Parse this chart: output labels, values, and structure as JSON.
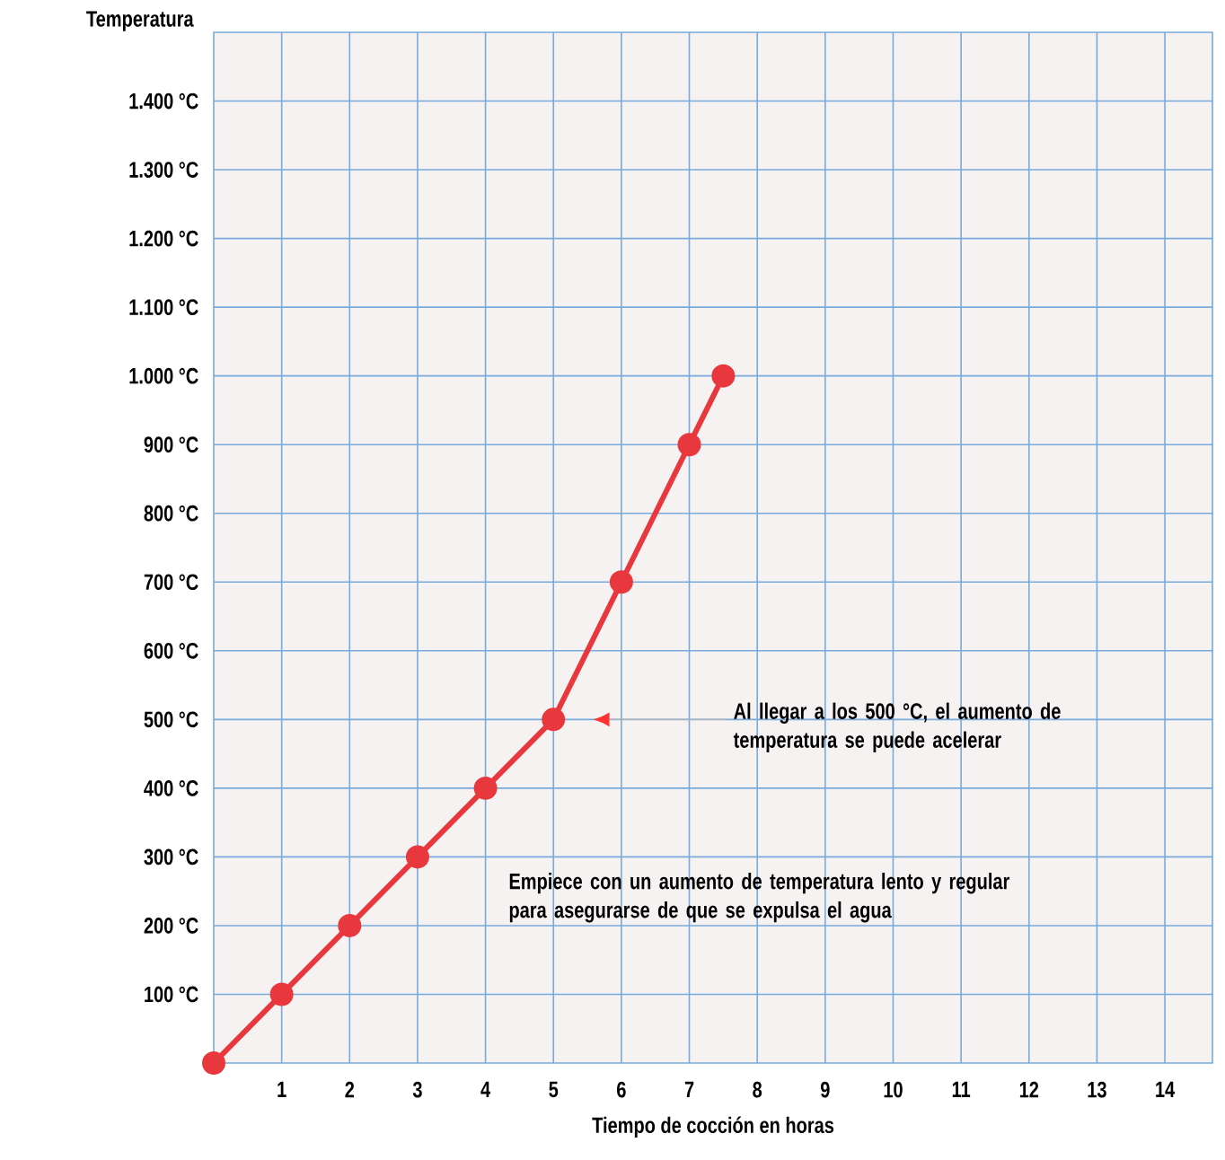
{
  "chart_data": {
    "type": "line",
    "xlabel": "Tiempo de cocción en horas",
    "ylabel": "Temperatura",
    "x": [
      0,
      1,
      2,
      3,
      4,
      5,
      6,
      7,
      7.5
    ],
    "series": [
      {
        "color": "#e8383d",
        "values": [
          0,
          100,
          200,
          300,
          400,
          500,
          700,
          900,
          1000
        ]
      }
    ],
    "xlim": [
      0,
      14.7
    ],
    "ylim": [
      0,
      1500
    ],
    "xticks": [
      1,
      2,
      3,
      4,
      5,
      6,
      7,
      8,
      9,
      10,
      11,
      12,
      13,
      14
    ],
    "yticks": [
      {
        "value": 100,
        "label": "100 °C"
      },
      {
        "value": 200,
        "label": "200 °C"
      },
      {
        "value": 300,
        "label": "300 °C"
      },
      {
        "value": 400,
        "label": "400 °C"
      },
      {
        "value": 500,
        "label": "500 °C"
      },
      {
        "value": 600,
        "label": "600 °C"
      },
      {
        "value": 700,
        "label": "700 °C"
      },
      {
        "value": 800,
        "label": "800 °C"
      },
      {
        "value": 900,
        "label": "900 °C"
      },
      {
        "value": 1000,
        "label": "1.000 °C"
      },
      {
        "value": 1100,
        "label": "1.100 °C"
      },
      {
        "value": 1200,
        "label": "1.200 °C"
      },
      {
        "value": 1300,
        "label": "1.300 °C"
      },
      {
        "value": 1400,
        "label": "1.400 °C"
      }
    ],
    "grid": true,
    "marker": "circle",
    "line_style": "solid",
    "annotations": [
      "Al llegar a los 500 °C, el aumento de temperatura se puede acelerar",
      "Empiece con un aumento de temperatura lento y regular para asegurarse de que se expulsa el agua"
    ]
  }
}
